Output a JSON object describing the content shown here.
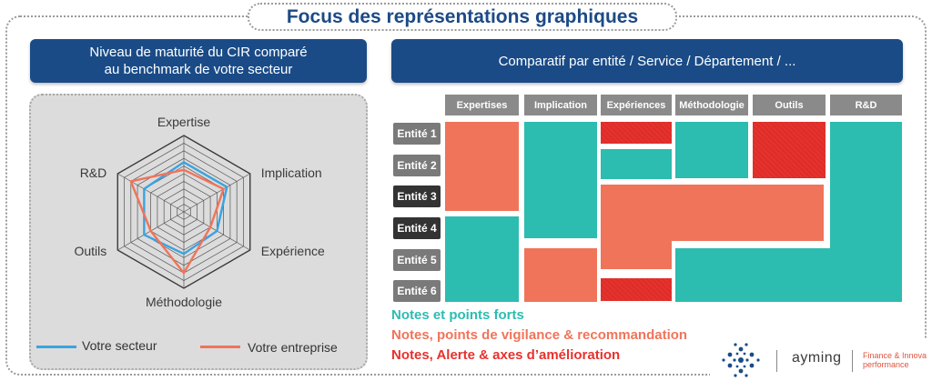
{
  "header": {
    "title": "Focus des représentations graphiques"
  },
  "left_banner": {
    "line1": "Niveau de maturité du CIR comparé",
    "line2": "au benchmark de votre secteur"
  },
  "right_banner": {
    "title": "Comparatif par entité / Service / Département / ..."
  },
  "chart_data": {
    "type": "radar",
    "axes": [
      "Expertise",
      "Implication",
      "Expérience",
      "Méthodologie",
      "Outils",
      "R&D"
    ],
    "rmax": 10,
    "series": [
      {
        "name": "Votre secteur",
        "color": "#3ba3e0",
        "values": [
          6.5,
          6.5,
          5.0,
          5.5,
          6.0,
          6.0
        ]
      },
      {
        "name": "Votre entreprise",
        "color": "#f0745a",
        "values": [
          5.5,
          6.0,
          4.0,
          8.0,
          5.0,
          8.0
        ]
      }
    ],
    "grid_levels": 10
  },
  "matrix": {
    "columns": [
      "Expertises",
      "Implication",
      "Expériences",
      "Méthodologie",
      "Outils",
      "R&D"
    ],
    "rows": [
      "Entité 1",
      "Entité 2",
      "Entité 3",
      "Entité 4",
      "Entité 5",
      "Entité 6"
    ],
    "colors": {
      "teal": "#2dbcb0",
      "orange": "#f0745a",
      "red": "#e8312d"
    }
  },
  "notes": [
    {
      "text": "Notes et points forts",
      "color": "#2dbcb0"
    },
    {
      "text": "Notes, points de vigilance & recommandation",
      "color": "#f0745a"
    },
    {
      "text": "Notes, Alerte & axes d’amélioration",
      "color": "#e8312d"
    }
  ],
  "logo": {
    "brand": "ayming",
    "tagline_line1": "Finance & Innova",
    "tagline_line2": "performance"
  }
}
